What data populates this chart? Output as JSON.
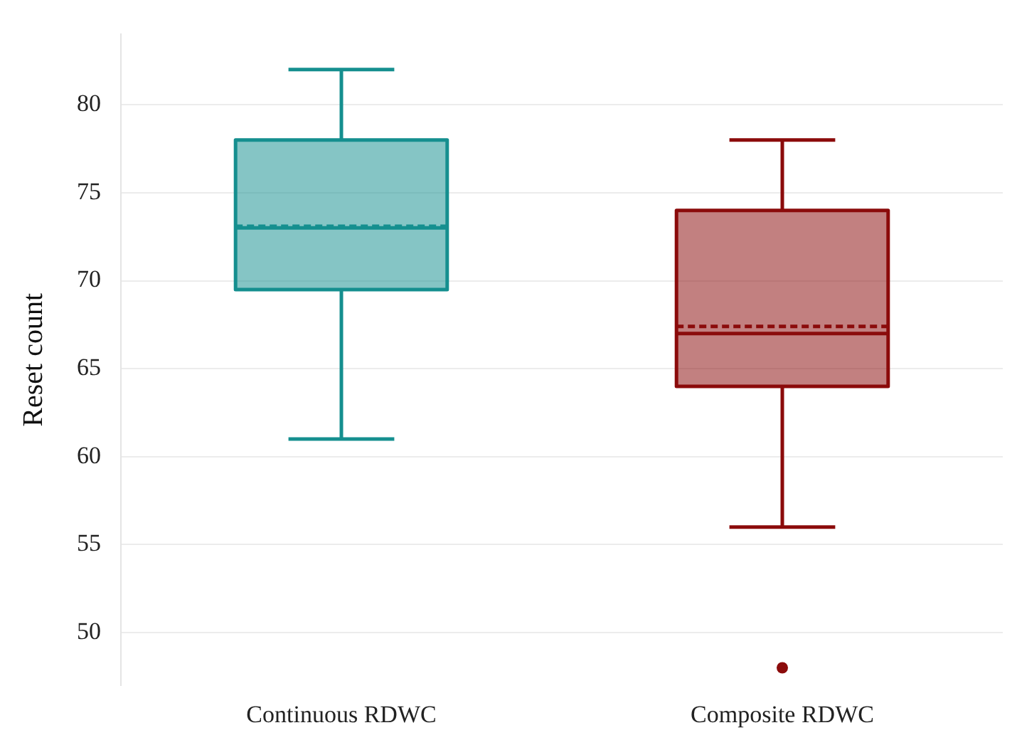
{
  "chart_data": {
    "type": "box",
    "ylabel": "Reset count",
    "categories": [
      "Continuous RDWC",
      "Composite RDWC"
    ],
    "colors": [
      "#158f8f",
      "#8b0b0b"
    ],
    "boxes": [
      {
        "low": 61,
        "q1": 69.5,
        "median": 73,
        "q3": 78,
        "high": 82,
        "mean": 73.1
      },
      {
        "low": 56,
        "q1": 64,
        "median": 67,
        "q3": 74,
        "high": 78,
        "mean": 67.4,
        "outliers": [
          48
        ]
      }
    ],
    "ylim": [
      47,
      84
    ],
    "yticks": [
      50,
      55,
      60,
      65,
      70,
      75,
      80
    ],
    "grid": "y",
    "legend": false
  }
}
